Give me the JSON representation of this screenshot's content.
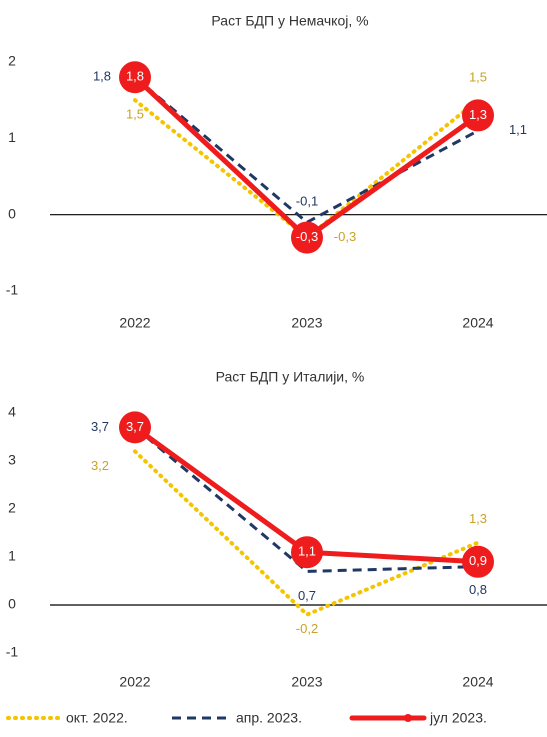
{
  "chart_data": [
    {
      "type": "line",
      "title": "Раст БДП у Немачкој, %",
      "categories": [
        "2022",
        "2023",
        "2024"
      ],
      "ylim": [
        -1,
        2
      ],
      "yticks": [
        -1,
        0,
        1,
        2
      ],
      "series": [
        {
          "name": "окт. 2022.",
          "color": "#f5c400",
          "values": [
            1.5,
            -0.3,
            1.5
          ],
          "value_labels": [
            "1,5",
            "-0,3",
            "1,5"
          ]
        },
        {
          "name": "апр. 2023.",
          "color": "#1f3864",
          "values": [
            1.8,
            -0.1,
            1.1
          ],
          "value_labels": [
            "1,8",
            "-0,1",
            "1,1"
          ]
        },
        {
          "name": "јул 2023.",
          "color": "#ee1c1c",
          "values": [
            1.8,
            -0.3,
            1.3
          ],
          "value_labels": [
            "1,8",
            "-0,3",
            "1,3"
          ]
        }
      ]
    },
    {
      "type": "line",
      "title": "Раст БДП у Италији, %",
      "categories": [
        "2022",
        "2023",
        "2024"
      ],
      "ylim": [
        -1,
        4
      ],
      "yticks": [
        -1,
        0,
        1,
        2,
        3,
        4
      ],
      "series": [
        {
          "color": "#f5c400",
          "values": [
            3.2,
            -0.2,
            1.3
          ],
          "value_labels": [
            "3,2",
            "-0,2",
            "1,3"
          ]
        },
        {
          "color": "#1f3864",
          "values": [
            3.7,
            0.7,
            0.8
          ],
          "value_labels": [
            "3,7",
            "0,7",
            "0,8"
          ]
        },
        {
          "color": "#ee1c1c",
          "values": [
            3.7,
            1.1,
            0.9
          ],
          "value_labels": [
            "3,7",
            "1,1",
            "0,9"
          ]
        }
      ]
    }
  ]
}
